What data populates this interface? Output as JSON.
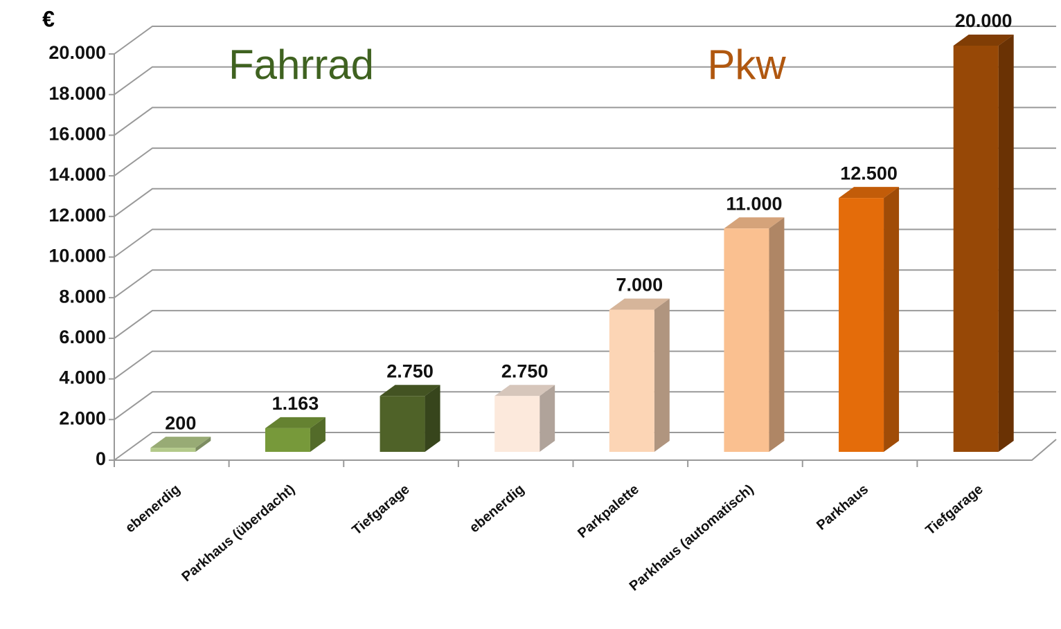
{
  "chart_data": {
    "type": "bar3d",
    "y_label": "€",
    "annotations": [
      "Fahrrad",
      "Pkw"
    ],
    "annotation_colors": [
      "#3f6220",
      "#b0570f"
    ],
    "categories": [
      "ebenerdig",
      "Parkhaus (überdacht)",
      "Tiefgarage",
      "ebenerdig",
      "Parkpalette",
      "Parkhaus (automatisch)",
      "Parkhaus",
      "Tiefgarage"
    ],
    "values": [
      200,
      1163,
      2750,
      2750,
      7000,
      11000,
      12500,
      20000
    ],
    "value_labels": [
      "200",
      "1.163",
      "2.750",
      "2.750",
      "7.000",
      "11.000",
      "12.500",
      "20.000"
    ],
    "colors": [
      "#b3c98a",
      "#77993a",
      "#4f6228",
      "#fce9dc",
      "#fcd5b5",
      "#fac090",
      "#e46c0a",
      "#974806"
    ],
    "ylim": [
      0,
      20000
    ],
    "yticks": [
      0,
      {
        "value": 2000,
        "label": "2.000"
      },
      {
        "value": 4000,
        "label": "4.000"
      },
      {
        "value": 6000,
        "label": "6.000"
      },
      {
        "value": 8000,
        "label": "8.000"
      },
      {
        "value": 10000,
        "label": "10.000"
      },
      {
        "value": 12000,
        "label": "12.000"
      },
      {
        "value": 14000,
        "label": "14.000"
      },
      {
        "value": 16000,
        "label": "16.000"
      },
      {
        "value": 18000,
        "label": "18.000"
      },
      {
        "value": 20000,
        "label": "20.000"
      }
    ],
    "grid": true
  }
}
